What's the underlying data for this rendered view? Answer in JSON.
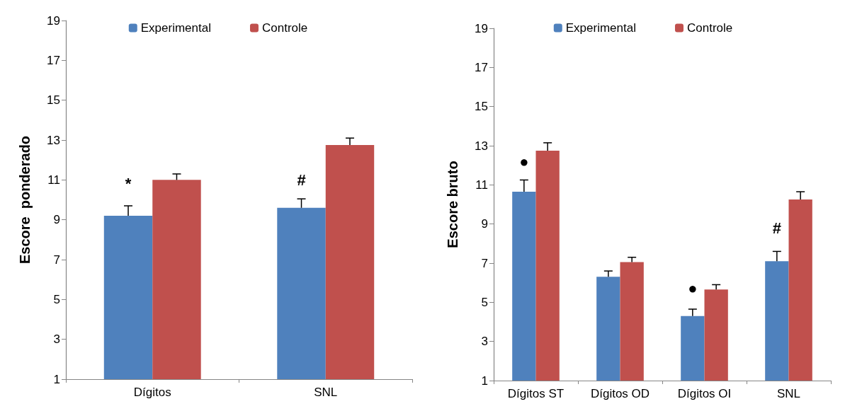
{
  "chart_data": [
    {
      "type": "bar",
      "ylabel": "Escore  ponderado",
      "categories": [
        "Dígitos",
        "SNL"
      ],
      "ylim": [
        1,
        19
      ],
      "yticks": [
        1,
        3,
        5,
        7,
        9,
        11,
        13,
        15,
        17,
        19
      ],
      "grid": false,
      "legend": "top",
      "series": [
        {
          "name": "Experimental",
          "color": "#4f81bd",
          "values": [
            9.2,
            9.6
          ],
          "errors": [
            [
              9.2,
              9.7
            ],
            [
              9.6,
              10.05
            ]
          ]
        },
        {
          "name": "Controle",
          "color": "#c0504d",
          "values": [
            11.0,
            12.75
          ],
          "errors": [
            [
              11.0,
              11.3
            ],
            [
              12.75,
              13.1
            ]
          ]
        }
      ],
      "annotations": [
        {
          "text": "*",
          "x": "Dígitos",
          "y": 10.8
        },
        {
          "text": "#",
          "x": "SNL",
          "y": 11.0
        }
      ]
    },
    {
      "type": "bar",
      "ylabel": "Escore bruto",
      "categories": [
        "Dígitos ST",
        "Dígitos OD",
        "Dígitos OI",
        "SNL"
      ],
      "ylim": [
        1,
        19
      ],
      "yticks": [
        1,
        3,
        5,
        7,
        9,
        11,
        13,
        15,
        17,
        19
      ],
      "grid": false,
      "legend": "top",
      "series": [
        {
          "name": "Experimental",
          "color": "#4f81bd",
          "values": [
            10.65,
            6.3,
            4.3,
            7.1
          ],
          "errors": [
            [
              10.65,
              11.25
            ],
            [
              6.3,
              6.6
            ],
            [
              4.3,
              4.65
            ],
            [
              7.1,
              7.6
            ]
          ]
        },
        {
          "name": "Controle",
          "color": "#c0504d",
          "values": [
            12.75,
            7.05,
            5.65,
            10.25
          ],
          "errors": [
            [
              12.75,
              13.15
            ],
            [
              7.05,
              7.3
            ],
            [
              5.65,
              5.9
            ],
            [
              10.25,
              10.65
            ]
          ]
        }
      ],
      "annotations": [
        {
          "text": "●",
          "x": "Dígitos ST",
          "y": 12.2
        },
        {
          "text": "●",
          "x": "Dígitos OI",
          "y": 5.7
        },
        {
          "text": "#",
          "x": "SNL",
          "y": 8.8
        }
      ]
    }
  ]
}
